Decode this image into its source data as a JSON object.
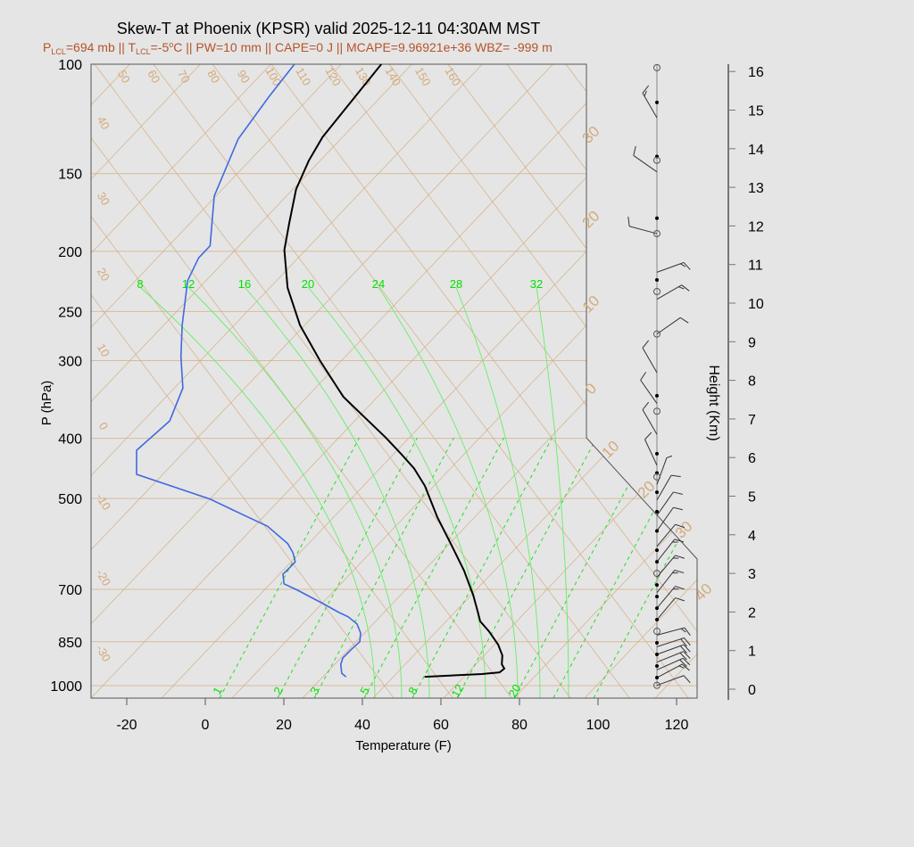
{
  "title": "Skew-T at Phoenix (KPSR) valid 2025-12-11 04:30AM MST",
  "subtitle": {
    "p_lcl_label": "P",
    "p_lcl_sub": "LCL",
    "p_lcl_val": "=694 mb || ",
    "t_lcl_label": "T",
    "t_lcl_sub": "LCL",
    "t_lcl_val": "=-5",
    "deg": "o",
    "t_lcl_rest": "C || PW=10 mm || CAPE=0 J || MCAPE=9.96921e+36 WBZ= -999 m"
  },
  "colors": {
    "temperature": "#000000",
    "dewpoint": "#4169e1",
    "isopleth": "#d4a97a",
    "moist": "#66ee66",
    "mixing": "#22dd22"
  },
  "chart_data": {
    "type": "line",
    "subtype": "skew-t",
    "xlabel": "Temperature (F)",
    "ylabel": "P (hPa)",
    "y2label": "Height (Km)",
    "xticks": [
      -20,
      0,
      20,
      40,
      60,
      80,
      100,
      120
    ],
    "yticks": [
      100,
      150,
      200,
      250,
      300,
      400,
      500,
      700,
      850,
      1000
    ],
    "y2ticks": [
      0,
      1,
      2,
      3,
      4,
      5,
      6,
      7,
      8,
      9,
      10,
      11,
      12,
      13,
      14,
      15,
      16
    ],
    "xlim": [
      -29,
      124
    ],
    "ylim": [
      1050,
      100
    ],
    "series": [
      {
        "name": "Temperature",
        "color": "#000000",
        "pressure": [
          968,
          958,
          952,
          939,
          924,
          894,
          859,
          818,
          788,
          760,
          716,
          653,
          591,
          536,
          477,
          447,
          425,
          399,
          372,
          343,
          300,
          263,
          229,
          199,
          180,
          159,
          143,
          131,
          114,
          100
        ],
        "temp_f": [
          50.7,
          64.6,
          68.7,
          69.0,
          67.3,
          65.3,
          61.6,
          56.1,
          51.4,
          48.4,
          43.4,
          35.0,
          25.1,
          15.3,
          4.5,
          -2.5,
          -8.9,
          -17.1,
          -26.7,
          -37.8,
          -52.5,
          -66.2,
          -78.4,
          -88.4,
          -93.7,
          -100.1,
          -103.8,
          -106.0,
          -107.4,
          -108.7
        ]
      },
      {
        "name": "Dewpoint",
        "color": "#4169e1",
        "pressure": [
          968,
          955,
          924,
          903,
          873,
          850,
          823,
          796,
          775,
          763,
          738,
          702,
          686,
          662,
          644,
          632,
          611,
          591,
          554,
          529,
          501,
          457,
          418,
          375,
          332,
          296,
          263,
          223,
          205,
          196,
          163,
          132,
          113,
          100
        ],
        "temp_f": [
          30.7,
          28.7,
          26.3,
          25.3,
          25.4,
          25.7,
          23.8,
          20.7,
          16.7,
          13.4,
          7.1,
          -2.7,
          -7.6,
          -10.2,
          -10.1,
          -10.1,
          -12.9,
          -16.4,
          -25.8,
          -35.6,
          -47.0,
          -71.7,
          -77.5,
          -76.2,
          -80.8,
          -88.8,
          -96.2,
          -105.6,
          -108.3,
          -108.3,
          -119.3,
          -127.0,
          -129.4,
          -130.8
        ]
      }
    ],
    "isotherm_labels_top": [
      "50",
      "60",
      "70",
      "80",
      "90",
      "100",
      "110",
      "120",
      "130",
      "140",
      "150",
      "160"
    ],
    "isotherm_labels_left": [
      "40",
      "30",
      "20",
      "10",
      "0",
      "-10",
      "-20",
      "-30"
    ],
    "isotherm_labels_right": [
      "30",
      "20",
      "10",
      "0"
    ],
    "isotherm_labels_diag": [
      "10",
      "20",
      "30",
      "40"
    ],
    "moist_adiabat_labels": [
      "8",
      "12",
      "16",
      "20",
      "24",
      "28",
      "32"
    ],
    "mixing_ratio_labels": [
      "1",
      "2",
      "3",
      "5",
      "8",
      "12",
      "20"
    ],
    "winds": [
      {
        "h": 0.1,
        "dir": 70,
        "spd": 10
      },
      {
        "h": 0.3,
        "dir": 62,
        "spd": 15
      },
      {
        "h": 0.5,
        "dir": 66,
        "spd": 20
      },
      {
        "h": 0.7,
        "dir": 68,
        "spd": 20
      },
      {
        "h": 0.9,
        "dir": 70,
        "spd": 20
      },
      {
        "h": 1.1,
        "dir": 72,
        "spd": 20
      },
      {
        "h": 1.4,
        "dir": 75,
        "spd": 15
      },
      {
        "h": 1.8,
        "dir": 40,
        "spd": 10
      },
      {
        "h": 2.1,
        "dir": 40,
        "spd": 15
      },
      {
        "h": 2.5,
        "dir": 38,
        "spd": 15
      },
      {
        "h": 2.9,
        "dir": 40,
        "spd": 15
      },
      {
        "h": 3.3,
        "dir": 38,
        "spd": 15
      },
      {
        "h": 3.7,
        "dir": 40,
        "spd": 10
      },
      {
        "h": 4.1,
        "dir": 35,
        "spd": 10
      },
      {
        "h": 4.5,
        "dir": 35,
        "spd": 10
      },
      {
        "h": 4.9,
        "dir": 30,
        "spd": 10
      },
      {
        "h": 5.3,
        "dir": 20,
        "spd": 5
      },
      {
        "h": 5.8,
        "dir": 335,
        "spd": 10
      },
      {
        "h": 6.6,
        "dir": 330,
        "spd": 10
      },
      {
        "h": 7.4,
        "dir": 325,
        "spd": 10
      },
      {
        "h": 8.2,
        "dir": 330,
        "spd": 10
      },
      {
        "h": 9.2,
        "dir": 55,
        "spd": 10
      },
      {
        "h": 10.1,
        "dir": 60,
        "spd": 15
      },
      {
        "h": 10.8,
        "dir": 70,
        "spd": 15
      },
      {
        "h": 11.8,
        "dir": 285,
        "spd": 10
      },
      {
        "h": 13.4,
        "dir": 305,
        "spd": 10
      },
      {
        "h": 14.8,
        "dir": 330,
        "spd": 15
      }
    ],
    "height_markers": {
      "filled": [
        0.3,
        0.6,
        0.9,
        1.2,
        1.8,
        2.1,
        2.4,
        2.7,
        3.3,
        3.6,
        4.1,
        4.6,
        5.1,
        5.6,
        6.1,
        7.6,
        10.6,
        12.2,
        13.8,
        15.2
      ],
      "open": [
        0.1,
        1.5,
        3.0,
        5.5,
        7.2,
        9.2,
        10.3,
        11.8,
        13.7,
        16.1
      ]
    }
  }
}
